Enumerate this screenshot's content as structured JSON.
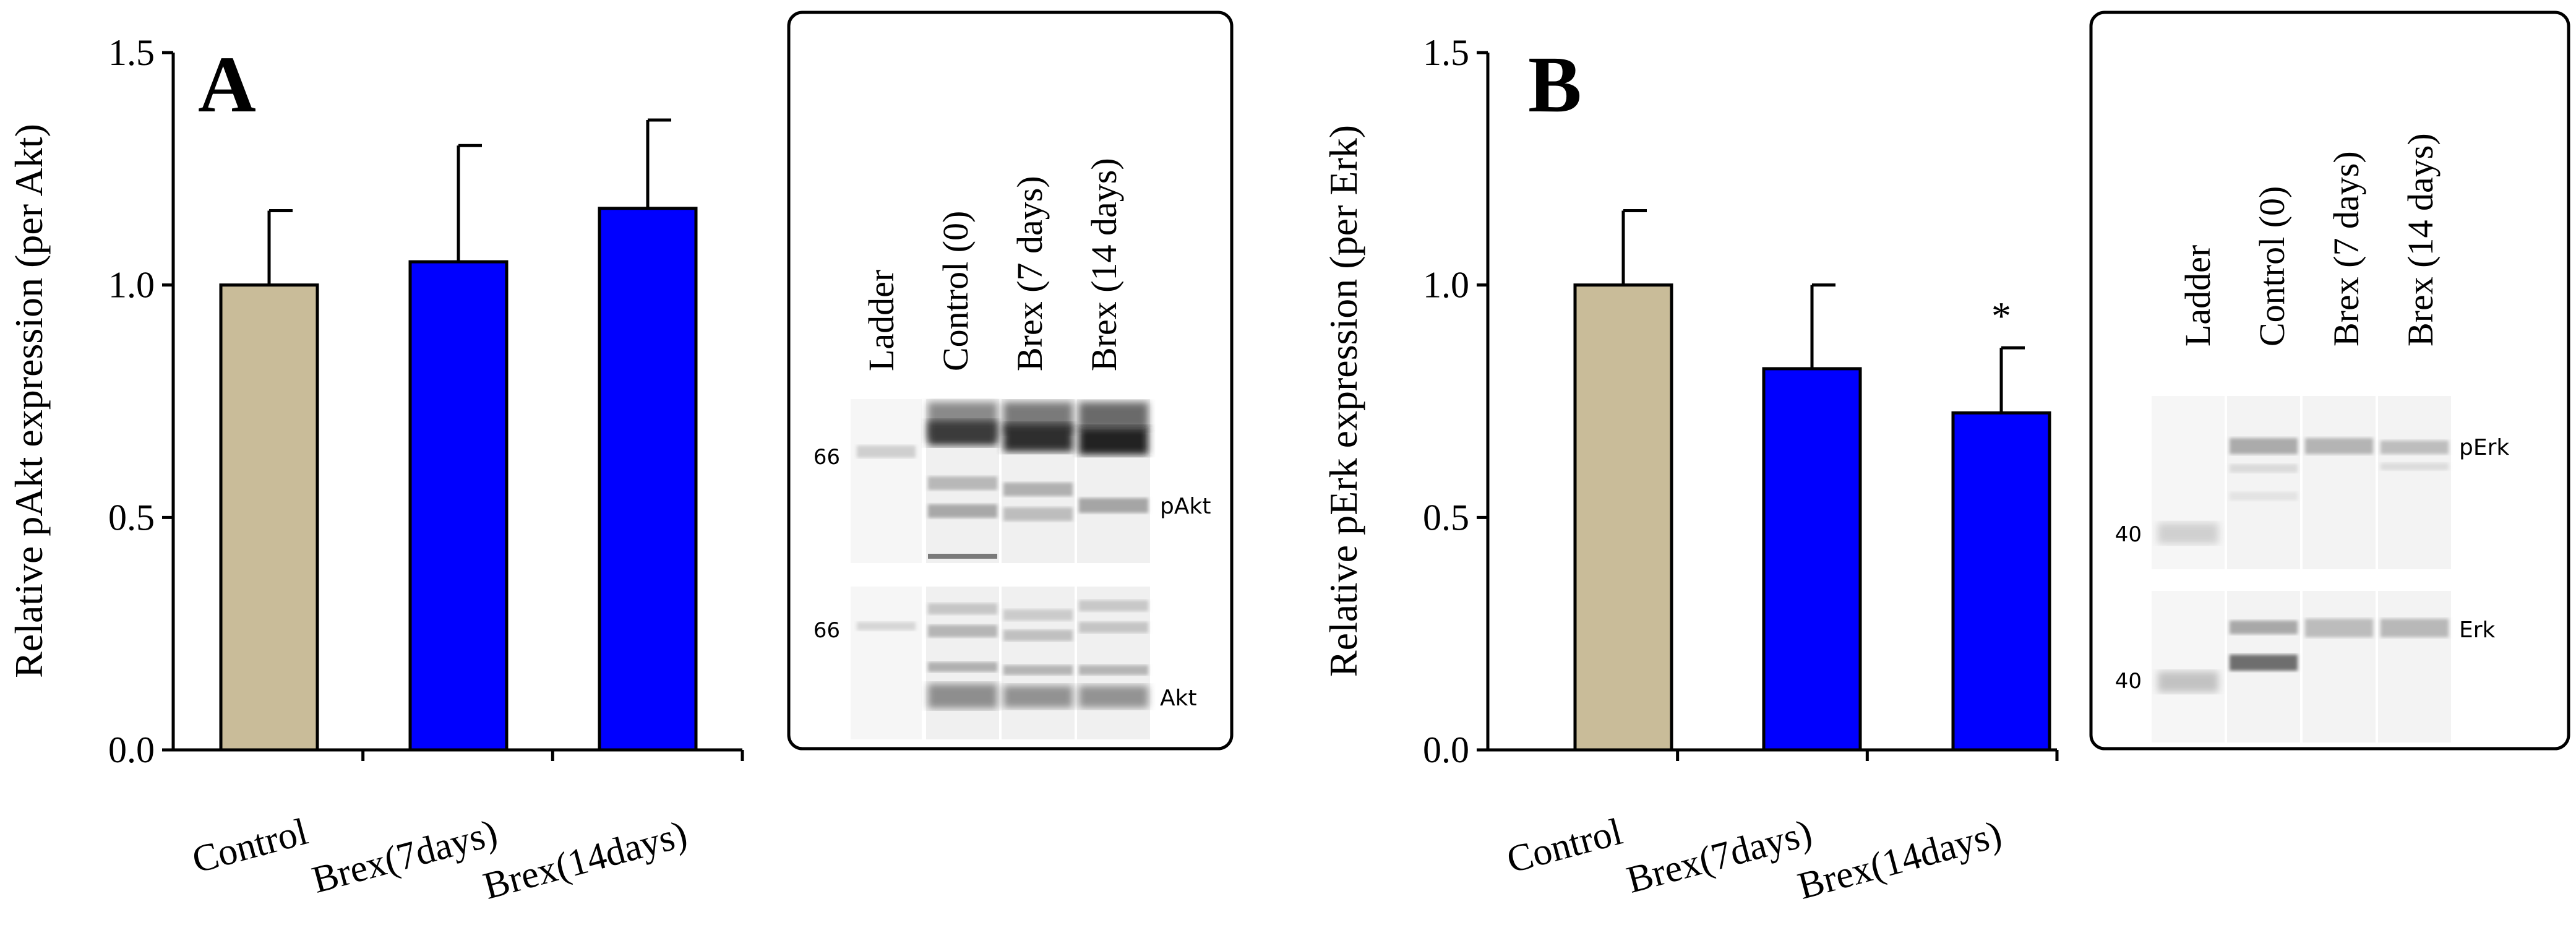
{
  "colors": {
    "control": "#c9bc99",
    "treatment": "#0000ff",
    "axis": "#000000",
    "gel_bg": "#f4f4f4"
  },
  "chart_data": [
    {
      "type": "bar",
      "panel_label": "A",
      "title": "",
      "ylabel": "Relative pAkt expression (per Akt)",
      "xlabel": "",
      "categories": [
        "Control",
        "Brex(7days)",
        "Brex(14days)"
      ],
      "values": [
        1.0,
        1.05,
        1.165
      ],
      "errors": [
        0.16,
        0.25,
        0.19
      ],
      "bar_colors": [
        "control",
        "treatment",
        "treatment"
      ],
      "significance": [
        "",
        "",
        ""
      ],
      "ylim": [
        0,
        1.5
      ],
      "yticks": [
        "0.0",
        "0.5",
        "1.0",
        "1.5"
      ],
      "grid": false
    },
    {
      "type": "bar",
      "panel_label": "B",
      "title": "",
      "ylabel": "Relative pErk expression (per Erk)",
      "xlabel": "",
      "categories": [
        "Control",
        "Brex(7days)",
        "Brex(14days)"
      ],
      "values": [
        1.0,
        0.82,
        0.725
      ],
      "errors": [
        0.16,
        0.18,
        0.14
      ],
      "bar_colors": [
        "control",
        "treatment",
        "treatment"
      ],
      "significance": [
        "",
        "",
        "*"
      ],
      "ylim": [
        0,
        1.5
      ],
      "yticks": [
        "0.0",
        "0.5",
        "1.0",
        "1.5"
      ],
      "grid": false
    }
  ],
  "blots": [
    {
      "lanes": [
        "Ladder",
        "Control (0)",
        "Brex (7 days)",
        "Brex (14 days)"
      ],
      "upper_marker": "66",
      "lower_marker": "66",
      "upper_label": "pAkt",
      "lower_label": "Akt"
    },
    {
      "lanes": [
        "Ladder",
        "Control (0)",
        "Brex (7 days)",
        "Brex (14 days)"
      ],
      "upper_marker": "40",
      "lower_marker": "40",
      "upper_label": "pErk",
      "lower_label": "Erk"
    }
  ]
}
